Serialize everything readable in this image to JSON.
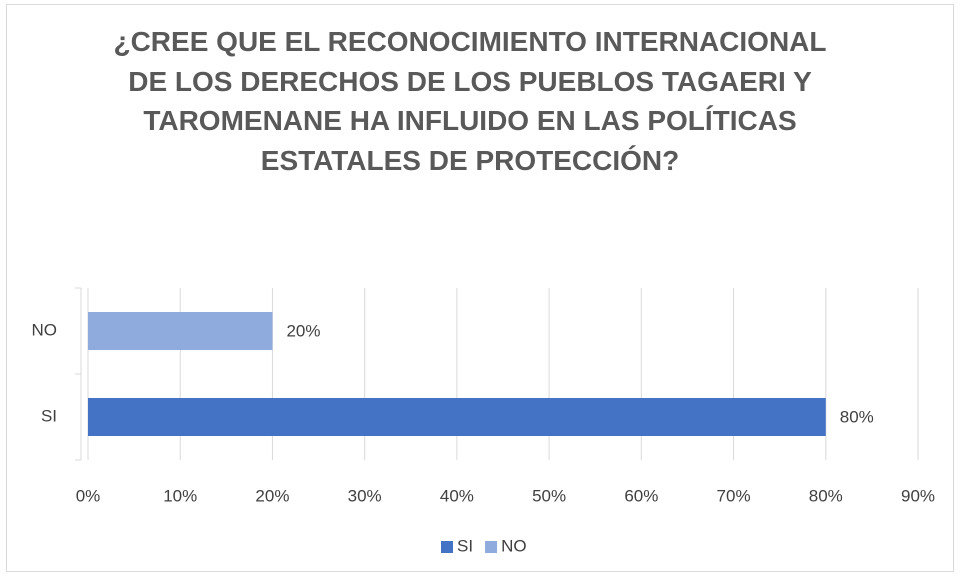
{
  "chart_data": {
    "type": "bar",
    "orientation": "horizontal",
    "title": "¿CREE QUE EL RECONOCIMIENTO INTERNACIONAL DE LOS DERECHOS DE LOS PUEBLOS TAGAERI Y TAROMENANE HA INFLUIDO EN LAS POLÍTICAS ESTATALES DE PROTECCIÓN?",
    "categories": [
      "SI",
      "NO"
    ],
    "values": [
      80,
      20
    ],
    "value_labels": [
      "80%",
      "20%"
    ],
    "colors": [
      "#4472c4",
      "#8faadc"
    ],
    "xlim": [
      0,
      90
    ],
    "xticks": [
      {
        "value": 0,
        "label": "0%"
      },
      {
        "value": 10,
        "label": "10%"
      },
      {
        "value": 20,
        "label": "20%"
      },
      {
        "value": 30,
        "label": "30%"
      },
      {
        "value": 40,
        "label": "40%"
      },
      {
        "value": 50,
        "label": "50%"
      },
      {
        "value": 60,
        "label": "60%"
      },
      {
        "value": 70,
        "label": "70%"
      },
      {
        "value": 80,
        "label": "80%"
      },
      {
        "value": 90,
        "label": "90%"
      }
    ],
    "grid": true,
    "legend": "bottom"
  }
}
